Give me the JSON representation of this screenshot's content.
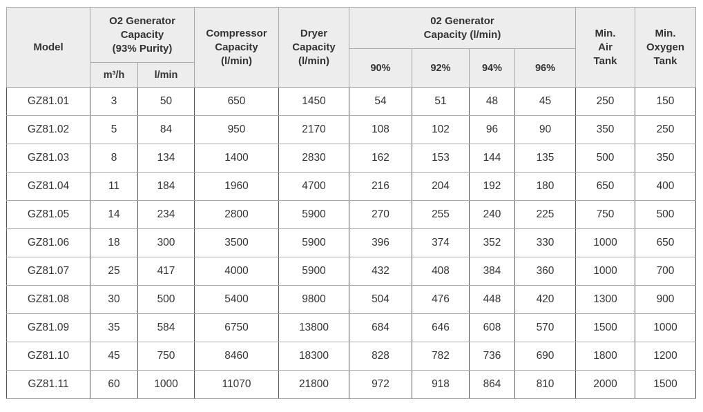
{
  "table": {
    "header": {
      "model": "Model",
      "o2_capacity": "O2 Generator\nCapacity",
      "o2_purity": "(93% Purity)",
      "o2_units": [
        "m³/h",
        "l/min"
      ],
      "compressor": "Compressor\nCapacity\n(l/min)",
      "dryer": "Dryer\nCapacity\n(l/min)",
      "purity_group": "02 Generator\nCapacity (l/min)",
      "purities": [
        "90%",
        "92%",
        "94%",
        "96%"
      ],
      "air_tank": "Min.\nAir\nTank",
      "oxygen_tank": "Min.\nOxygen\nTank"
    },
    "rows": [
      [
        "GZ81.01",
        3,
        50,
        650,
        1450,
        54,
        51,
        48,
        45,
        250,
        150
      ],
      [
        "GZ81.02",
        5,
        84,
        950,
        2170,
        108,
        102,
        96,
        90,
        350,
        250
      ],
      [
        "GZ81.03",
        8,
        134,
        1400,
        2830,
        162,
        153,
        144,
        135,
        500,
        350
      ],
      [
        "GZ81.04",
        11,
        184,
        1960,
        4700,
        216,
        204,
        192,
        180,
        650,
        400
      ],
      [
        "GZ81.05",
        14,
        234,
        2800,
        5900,
        270,
        255,
        240,
        225,
        750,
        500
      ],
      [
        "GZ81.06",
        18,
        300,
        3500,
        5900,
        396,
        374,
        352,
        330,
        1000,
        650
      ],
      [
        "GZ81.07",
        25,
        417,
        4000,
        5900,
        432,
        408,
        384,
        360,
        1000,
        700
      ],
      [
        "GZ81.08",
        30,
        500,
        5400,
        9800,
        504,
        476,
        448,
        420,
        1300,
        900
      ],
      [
        "GZ81.09",
        35,
        584,
        6750,
        13800,
        684,
        646,
        608,
        570,
        1500,
        1000
      ],
      [
        "GZ81.10",
        45,
        750,
        8460,
        18300,
        828,
        782,
        736,
        690,
        1800,
        1200
      ],
      [
        "GZ81.11",
        60,
        1000,
        11070,
        21800,
        972,
        918,
        864,
        810,
        2000,
        1500
      ]
    ]
  }
}
